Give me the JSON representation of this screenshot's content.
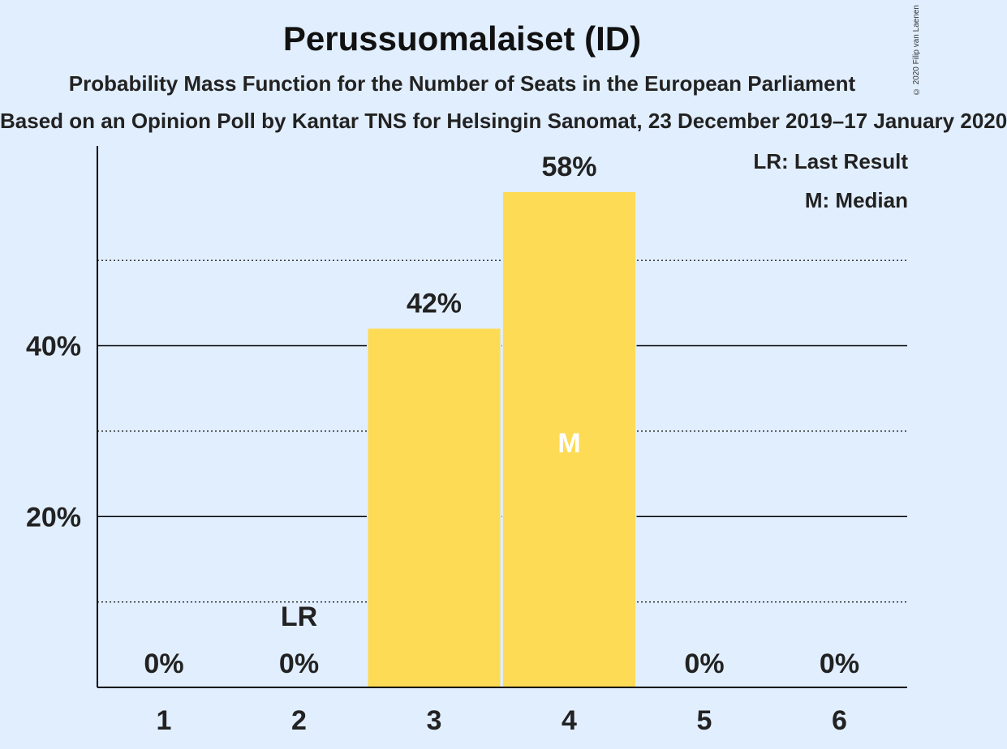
{
  "chart_data": {
    "type": "bar",
    "title": "Perussuomalaiset (ID)",
    "subtitle": "Probability Mass Function for the Number of Seats in the European Parliament",
    "source": "Based on an Opinion Poll by Kantar TNS for Helsingin Sanomat, 23 December 2019–17 January 2020",
    "copyright": "© 2020 Filip van Laenen",
    "categories": [
      "1",
      "2",
      "3",
      "4",
      "5",
      "6"
    ],
    "values": [
      0,
      0,
      42,
      58,
      0,
      0
    ],
    "value_labels": [
      "0%",
      "0%",
      "42%",
      "58%",
      "0%",
      "0%"
    ],
    "ylim": [
      0,
      63.4
    ],
    "yticks": [
      {
        "value": 20,
        "label": "20%"
      },
      {
        "value": 40,
        "label": "40%"
      }
    ],
    "minor_grid": [
      10,
      30,
      50
    ],
    "last_result": {
      "category": "2",
      "label": "LR"
    },
    "median": {
      "category": "4",
      "label": "M"
    },
    "legend": [
      "LR: Last Result",
      "M: Median"
    ],
    "legend_position": "top-right",
    "colors": {
      "bar": "#fddb55",
      "background": "#e1eefe",
      "median_text": "#ffffff"
    }
  }
}
